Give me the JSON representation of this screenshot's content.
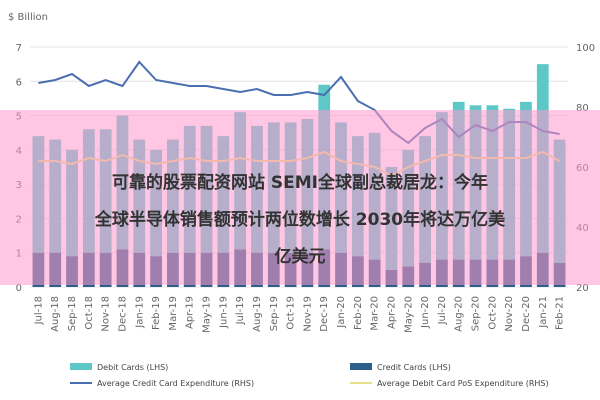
{
  "chart_data": {
    "type": "bar",
    "unit_label": "$ Billion",
    "categories": [
      "Jul-18",
      "Aug-18",
      "Sep-18",
      "Oct-18",
      "Nov-18",
      "Dec-18",
      "Jan-19",
      "Feb-19",
      "Mar-19",
      "Apr-19",
      "May-19",
      "Jun-19",
      "Jul-19",
      "Aug-19",
      "Sep-19",
      "Oct-19",
      "Nov-19",
      "Dec-19",
      "Jan-20",
      "Feb-20",
      "Mar-20",
      "Apr-20",
      "May-20",
      "Jun-20",
      "Jul-20",
      "Aug-20",
      "Sep-20",
      "Oct-20",
      "Nov-20",
      "Dec-20",
      "Jan-21",
      "Feb-21"
    ],
    "series": [
      {
        "name": "Credit Cards (LHS)",
        "color": "#2e5f8a",
        "stack": true,
        "values": [
          1.0,
          1.0,
          0.9,
          1.0,
          1.0,
          1.1,
          1.0,
          0.9,
          1.0,
          1.0,
          1.0,
          1.0,
          1.1,
          1.0,
          1.0,
          1.0,
          1.0,
          1.1,
          1.0,
          0.9,
          0.8,
          0.5,
          0.6,
          0.7,
          0.8,
          0.8,
          0.8,
          0.8,
          0.8,
          0.9,
          1.0,
          0.7
        ]
      },
      {
        "name": "Debit Cards (LHS)",
        "color": "#5ec8c8",
        "stack": true,
        "values": [
          3.4,
          3.3,
          3.1,
          3.6,
          3.6,
          3.9,
          3.3,
          3.1,
          3.3,
          3.7,
          3.7,
          3.4,
          4.0,
          3.7,
          3.8,
          3.8,
          3.9,
          4.8,
          3.8,
          3.5,
          3.7,
          3.0,
          3.4,
          3.7,
          4.3,
          4.6,
          4.5,
          4.5,
          4.4,
          4.5,
          5.5,
          3.6
        ]
      },
      {
        "name": "Average Credit Card Expenditure (RHS)",
        "color": "#4a6fb0",
        "axis": "y2",
        "values": [
          88,
          89,
          91,
          87,
          89,
          87,
          95,
          89,
          88,
          87,
          87,
          86,
          85,
          86,
          84,
          84,
          85,
          84,
          90,
          82,
          79,
          72,
          68,
          73,
          76,
          70,
          74,
          72,
          75,
          75,
          72,
          71
        ]
      },
      {
        "name": "Average Debit Card PoS Expenditure (RHS)",
        "color": "#e6e08a",
        "axis": "y2",
        "values": [
          62,
          62,
          61,
          63,
          62,
          64,
          62,
          61,
          62,
          63,
          62,
          62,
          63,
          62,
          62,
          62,
          63,
          65,
          62,
          61,
          60,
          57,
          60,
          62,
          64,
          64,
          63,
          63,
          63,
          63,
          65,
          62
        ]
      }
    ],
    "ylim": [
      0,
      7
    ],
    "yticks": [
      0,
      1,
      2,
      3,
      4,
      5,
      6,
      7
    ],
    "y2lim": [
      20,
      100
    ],
    "y2ticks": [
      20,
      40,
      60,
      80,
      100
    ],
    "overlay": [
      "可靠的股票配资网站 SEMI全球副总裁居龙：今年",
      "全球半导体销售额预计两位数增长 2030年将达万亿美",
      "亿美元"
    ]
  }
}
